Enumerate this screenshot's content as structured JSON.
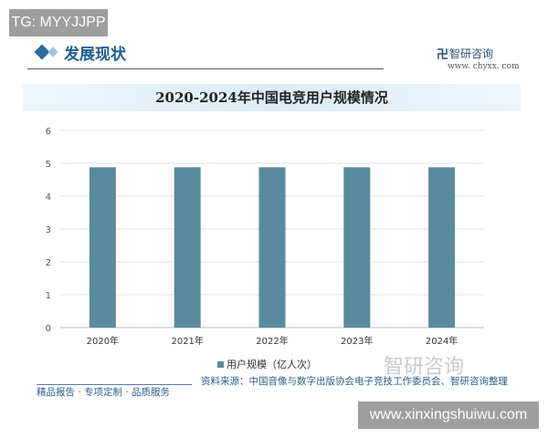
{
  "overlay_top": "TG: MYYJJPP",
  "overlay_bottom": "www.xinxingshuiwu.com",
  "header": {
    "section_title": "发展现状",
    "brand_name": "智研咨询",
    "brand_url": "www. chyxx. com"
  },
  "footer": {
    "source": "资料来源：中国音像与数字出版协会电子竞技工作委员会、智研咨询整理",
    "slogan": "精品报告 · 专项定制 · 品质服务",
    "watermark": "智研咨询"
  },
  "colors": {
    "bar": "#5a8aa0",
    "accent": "#1f5d94"
  },
  "chart_data": {
    "type": "bar",
    "title": "2020-2024年中国电竞用户规模情况",
    "categories": [
      "2020年",
      "2021年",
      "2022年",
      "2023年",
      "2024年"
    ],
    "series": [
      {
        "name": "用户规模（亿人次）",
        "values": [
          4.88,
          4.88,
          4.88,
          4.88,
          4.88
        ]
      }
    ],
    "ylim": [
      0,
      6
    ],
    "yticks": [
      0,
      1,
      2,
      3,
      4,
      5,
      6
    ],
    "grid": true,
    "legend": "bottom"
  }
}
